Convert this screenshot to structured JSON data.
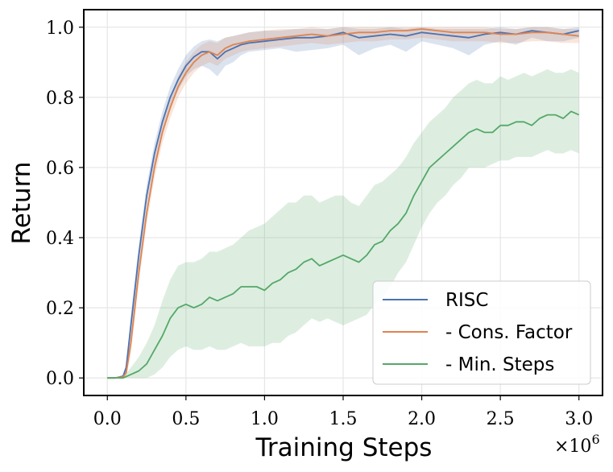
{
  "chart_data": {
    "type": "line",
    "title": "",
    "xlabel": "Training Steps",
    "ylabel": "Return",
    "x_multiplier": "×10",
    "x_multiplier_exp": "6",
    "xlim": [
      -0.15,
      3.15
    ],
    "ylim": [
      -0.05,
      1.05
    ],
    "xticks": [
      0.0,
      0.5,
      1.0,
      1.5,
      2.0,
      2.5,
      3.0
    ],
    "xtick_labels": [
      "0.0",
      "0.5",
      "1.0",
      "1.5",
      "2.0",
      "2.5",
      "3.0"
    ],
    "yticks": [
      0.0,
      0.2,
      0.4,
      0.6,
      0.8,
      1.0
    ],
    "ytick_labels": [
      "0.0",
      "0.2",
      "0.4",
      "0.6",
      "0.8",
      "1.0"
    ],
    "grid": true,
    "legend_position": "lower-right",
    "series": [
      {
        "name": "RISC",
        "color": "#4c72b0",
        "x": [
          0,
          0.05,
          0.1,
          0.12,
          0.15,
          0.2,
          0.25,
          0.3,
          0.35,
          0.4,
          0.45,
          0.5,
          0.55,
          0.6,
          0.65,
          0.7,
          0.75,
          0.8,
          0.85,
          0.9,
          1.0,
          1.1,
          1.2,
          1.3,
          1.4,
          1.5,
          1.6,
          1.7,
          1.8,
          1.9,
          2.0,
          2.1,
          2.2,
          2.3,
          2.4,
          2.5,
          2.6,
          2.7,
          2.8,
          2.9,
          3.0
        ],
        "y": [
          0,
          0,
          0.005,
          0.03,
          0.15,
          0.35,
          0.52,
          0.64,
          0.73,
          0.8,
          0.85,
          0.89,
          0.915,
          0.93,
          0.93,
          0.91,
          0.93,
          0.94,
          0.95,
          0.955,
          0.96,
          0.965,
          0.97,
          0.97,
          0.975,
          0.985,
          0.97,
          0.975,
          0.98,
          0.975,
          0.985,
          0.98,
          0.975,
          0.97,
          0.98,
          0.985,
          0.98,
          0.99,
          0.985,
          0.98,
          0.99
        ],
        "lower": [
          0,
          0,
          0,
          0.02,
          0.12,
          0.32,
          0.49,
          0.61,
          0.7,
          0.77,
          0.82,
          0.86,
          0.88,
          0.89,
          0.88,
          0.86,
          0.89,
          0.9,
          0.92,
          0.93,
          0.935,
          0.94,
          0.93,
          0.935,
          0.94,
          0.95,
          0.92,
          0.94,
          0.95,
          0.93,
          0.96,
          0.95,
          0.94,
          0.92,
          0.95,
          0.96,
          0.95,
          0.97,
          0.96,
          0.96,
          0.97
        ],
        "upper": [
          0,
          0,
          0.01,
          0.04,
          0.18,
          0.38,
          0.55,
          0.67,
          0.76,
          0.83,
          0.88,
          0.92,
          0.945,
          0.96,
          0.965,
          0.96,
          0.97,
          0.975,
          0.98,
          0.985,
          0.99,
          0.99,
          0.995,
          0.995,
          0.995,
          1.0,
          0.995,
          0.995,
          1.0,
          0.995,
          1.0,
          0.995,
          0.995,
          0.995,
          0.995,
          1.0,
          0.995,
          1.0,
          1.0,
          0.995,
          1.0
        ]
      },
      {
        "name": "- Cons. Factor",
        "color": "#dd8452",
        "x": [
          0,
          0.05,
          0.1,
          0.12,
          0.15,
          0.2,
          0.25,
          0.3,
          0.35,
          0.4,
          0.45,
          0.5,
          0.55,
          0.6,
          0.65,
          0.7,
          0.75,
          0.8,
          0.85,
          0.9,
          1.0,
          1.1,
          1.2,
          1.3,
          1.4,
          1.5,
          1.6,
          1.7,
          1.8,
          1.9,
          2.0,
          2.1,
          2.2,
          2.3,
          2.4,
          2.5,
          2.6,
          2.7,
          2.8,
          2.9,
          3.0
        ],
        "y": [
          0,
          0,
          0.003,
          0.015,
          0.1,
          0.3,
          0.47,
          0.6,
          0.7,
          0.77,
          0.83,
          0.87,
          0.9,
          0.92,
          0.93,
          0.92,
          0.94,
          0.95,
          0.955,
          0.96,
          0.965,
          0.97,
          0.975,
          0.98,
          0.975,
          0.98,
          0.985,
          0.985,
          0.99,
          0.99,
          0.995,
          0.99,
          0.985,
          0.985,
          0.985,
          0.98,
          0.98,
          0.985,
          0.985,
          0.98,
          0.975
        ],
        "lower": [
          0,
          0,
          0,
          0.005,
          0.07,
          0.27,
          0.44,
          0.57,
          0.67,
          0.74,
          0.8,
          0.84,
          0.87,
          0.89,
          0.9,
          0.89,
          0.91,
          0.92,
          0.93,
          0.935,
          0.94,
          0.945,
          0.95,
          0.955,
          0.95,
          0.955,
          0.96,
          0.96,
          0.965,
          0.965,
          0.97,
          0.965,
          0.96,
          0.96,
          0.96,
          0.955,
          0.955,
          0.96,
          0.96,
          0.955,
          0.955
        ],
        "upper": [
          0,
          0,
          0.006,
          0.025,
          0.13,
          0.33,
          0.5,
          0.63,
          0.73,
          0.8,
          0.86,
          0.9,
          0.93,
          0.95,
          0.96,
          0.955,
          0.97,
          0.975,
          0.98,
          0.985,
          0.99,
          0.995,
          0.995,
          1.0,
          0.995,
          1.0,
          1.0,
          1.0,
          1.0,
          1.0,
          1.0,
          1.0,
          1.0,
          1.0,
          1.0,
          0.995,
          0.995,
          1.0,
          1.0,
          0.995,
          0.995
        ]
      },
      {
        "name": "- Min. Steps",
        "color": "#55a868",
        "x": [
          0,
          0.05,
          0.1,
          0.15,
          0.2,
          0.25,
          0.3,
          0.35,
          0.4,
          0.45,
          0.5,
          0.55,
          0.6,
          0.65,
          0.7,
          0.75,
          0.8,
          0.85,
          0.9,
          0.95,
          1.0,
          1.05,
          1.1,
          1.15,
          1.2,
          1.25,
          1.3,
          1.35,
          1.4,
          1.45,
          1.5,
          1.55,
          1.6,
          1.65,
          1.7,
          1.75,
          1.8,
          1.85,
          1.9,
          1.95,
          2.0,
          2.05,
          2.1,
          2.15,
          2.2,
          2.25,
          2.3,
          2.35,
          2.4,
          2.45,
          2.5,
          2.55,
          2.6,
          2.65,
          2.7,
          2.75,
          2.8,
          2.85,
          2.9,
          2.95,
          3.0
        ],
        "y": [
          0,
          0,
          0,
          0.01,
          0.02,
          0.04,
          0.08,
          0.12,
          0.17,
          0.2,
          0.21,
          0.2,
          0.21,
          0.23,
          0.22,
          0.23,
          0.24,
          0.26,
          0.26,
          0.26,
          0.25,
          0.27,
          0.28,
          0.3,
          0.31,
          0.33,
          0.34,
          0.32,
          0.33,
          0.34,
          0.35,
          0.34,
          0.33,
          0.35,
          0.38,
          0.39,
          0.42,
          0.44,
          0.47,
          0.52,
          0.56,
          0.6,
          0.62,
          0.64,
          0.66,
          0.68,
          0.7,
          0.71,
          0.7,
          0.7,
          0.72,
          0.72,
          0.73,
          0.73,
          0.72,
          0.74,
          0.75,
          0.75,
          0.74,
          0.76,
          0.75
        ],
        "lower": [
          0,
          0,
          0,
          0.0,
          0.0,
          0.0,
          0.01,
          0.03,
          0.06,
          0.08,
          0.09,
          0.08,
          0.08,
          0.09,
          0.08,
          0.08,
          0.09,
          0.1,
          0.09,
          0.09,
          0.09,
          0.1,
          0.1,
          0.12,
          0.13,
          0.15,
          0.17,
          0.16,
          0.17,
          0.16,
          0.15,
          0.16,
          0.17,
          0.18,
          0.21,
          0.23,
          0.26,
          0.3,
          0.33,
          0.38,
          0.43,
          0.47,
          0.5,
          0.52,
          0.55,
          0.57,
          0.6,
          0.6,
          0.6,
          0.61,
          0.62,
          0.62,
          0.63,
          0.63,
          0.63,
          0.64,
          0.65,
          0.64,
          0.64,
          0.65,
          0.64
        ],
        "upper": [
          0,
          0,
          0,
          0.03,
          0.06,
          0.1,
          0.15,
          0.22,
          0.28,
          0.32,
          0.33,
          0.33,
          0.34,
          0.36,
          0.36,
          0.37,
          0.38,
          0.4,
          0.42,
          0.43,
          0.44,
          0.46,
          0.48,
          0.5,
          0.5,
          0.52,
          0.52,
          0.5,
          0.51,
          0.52,
          0.52,
          0.5,
          0.49,
          0.52,
          0.55,
          0.56,
          0.58,
          0.6,
          0.63,
          0.67,
          0.7,
          0.73,
          0.75,
          0.77,
          0.8,
          0.82,
          0.84,
          0.85,
          0.84,
          0.84,
          0.86,
          0.85,
          0.86,
          0.87,
          0.86,
          0.87,
          0.88,
          0.87,
          0.87,
          0.88,
          0.87
        ]
      }
    ]
  }
}
